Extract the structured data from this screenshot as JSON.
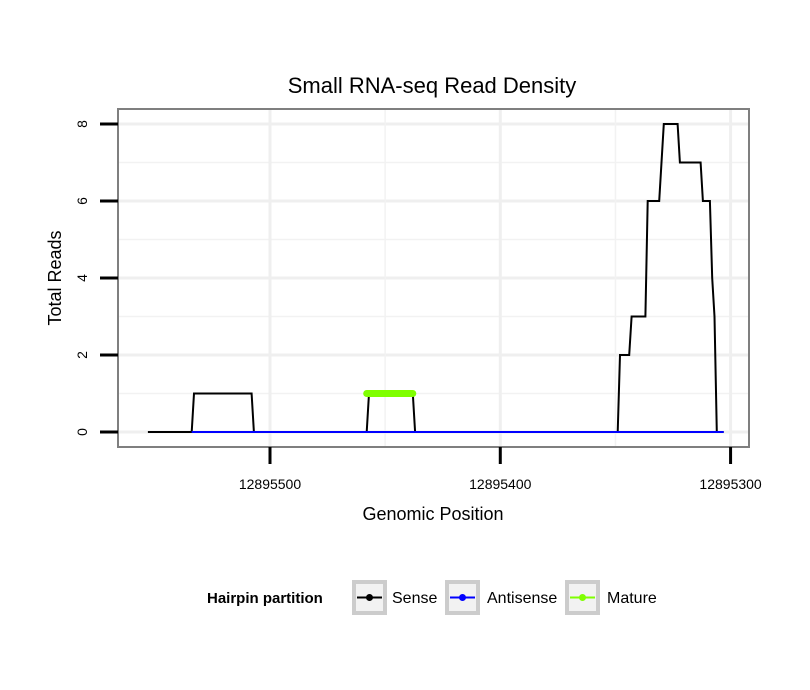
{
  "chart_data": {
    "type": "line",
    "title": "Small RNA-seq Read Density",
    "xlabel": "Genomic Position",
    "ylabel": "Total Reads",
    "xlim": [
      12895566,
      12895292
    ],
    "ylim": [
      0,
      8.3
    ],
    "x_reversed": true,
    "x_ticks": [
      12895500,
      12895400,
      12895300
    ],
    "x_tick_labels": [
      "12895500",
      "12895400",
      "12895300"
    ],
    "y_ticks": [
      0,
      2,
      4,
      6,
      8
    ],
    "y_tick_labels": [
      "0",
      "2",
      "4",
      "6",
      "8"
    ],
    "grid": true,
    "legend": {
      "title": "Hairpin partition",
      "position": "bottom",
      "entries": [
        "Sense",
        "Antisense",
        "Mature"
      ]
    },
    "series": [
      {
        "name": "Sense",
        "color": "#000000",
        "points": [
          [
            12895553,
            0
          ],
          [
            12895534,
            0
          ],
          [
            12895533,
            1
          ],
          [
            12895508,
            1
          ],
          [
            12895507,
            0
          ],
          [
            12895458,
            0
          ],
          [
            12895457,
            1
          ],
          [
            12895438,
            1
          ],
          [
            12895437,
            0
          ],
          [
            12895349,
            0
          ],
          [
            12895348,
            2
          ],
          [
            12895344,
            2
          ],
          [
            12895343,
            3
          ],
          [
            12895337,
            3
          ],
          [
            12895336,
            6
          ],
          [
            12895331,
            6
          ],
          [
            12895329,
            8
          ],
          [
            12895323,
            8
          ],
          [
            12895322,
            7
          ],
          [
            12895313,
            7
          ],
          [
            12895312,
            6
          ],
          [
            12895309,
            6
          ],
          [
            12895308,
            4
          ],
          [
            12895307,
            3
          ],
          [
            12895306,
            0
          ],
          [
            12895303,
            0
          ]
        ]
      },
      {
        "name": "Antisense",
        "color": "#0000ff",
        "points": [
          [
            12895534,
            0
          ],
          [
            12895303,
            0
          ]
        ]
      },
      {
        "name": "Mature",
        "color": "#7fff00",
        "points": [
          [
            12895458,
            1
          ],
          [
            12895438,
            1
          ]
        ]
      }
    ]
  }
}
